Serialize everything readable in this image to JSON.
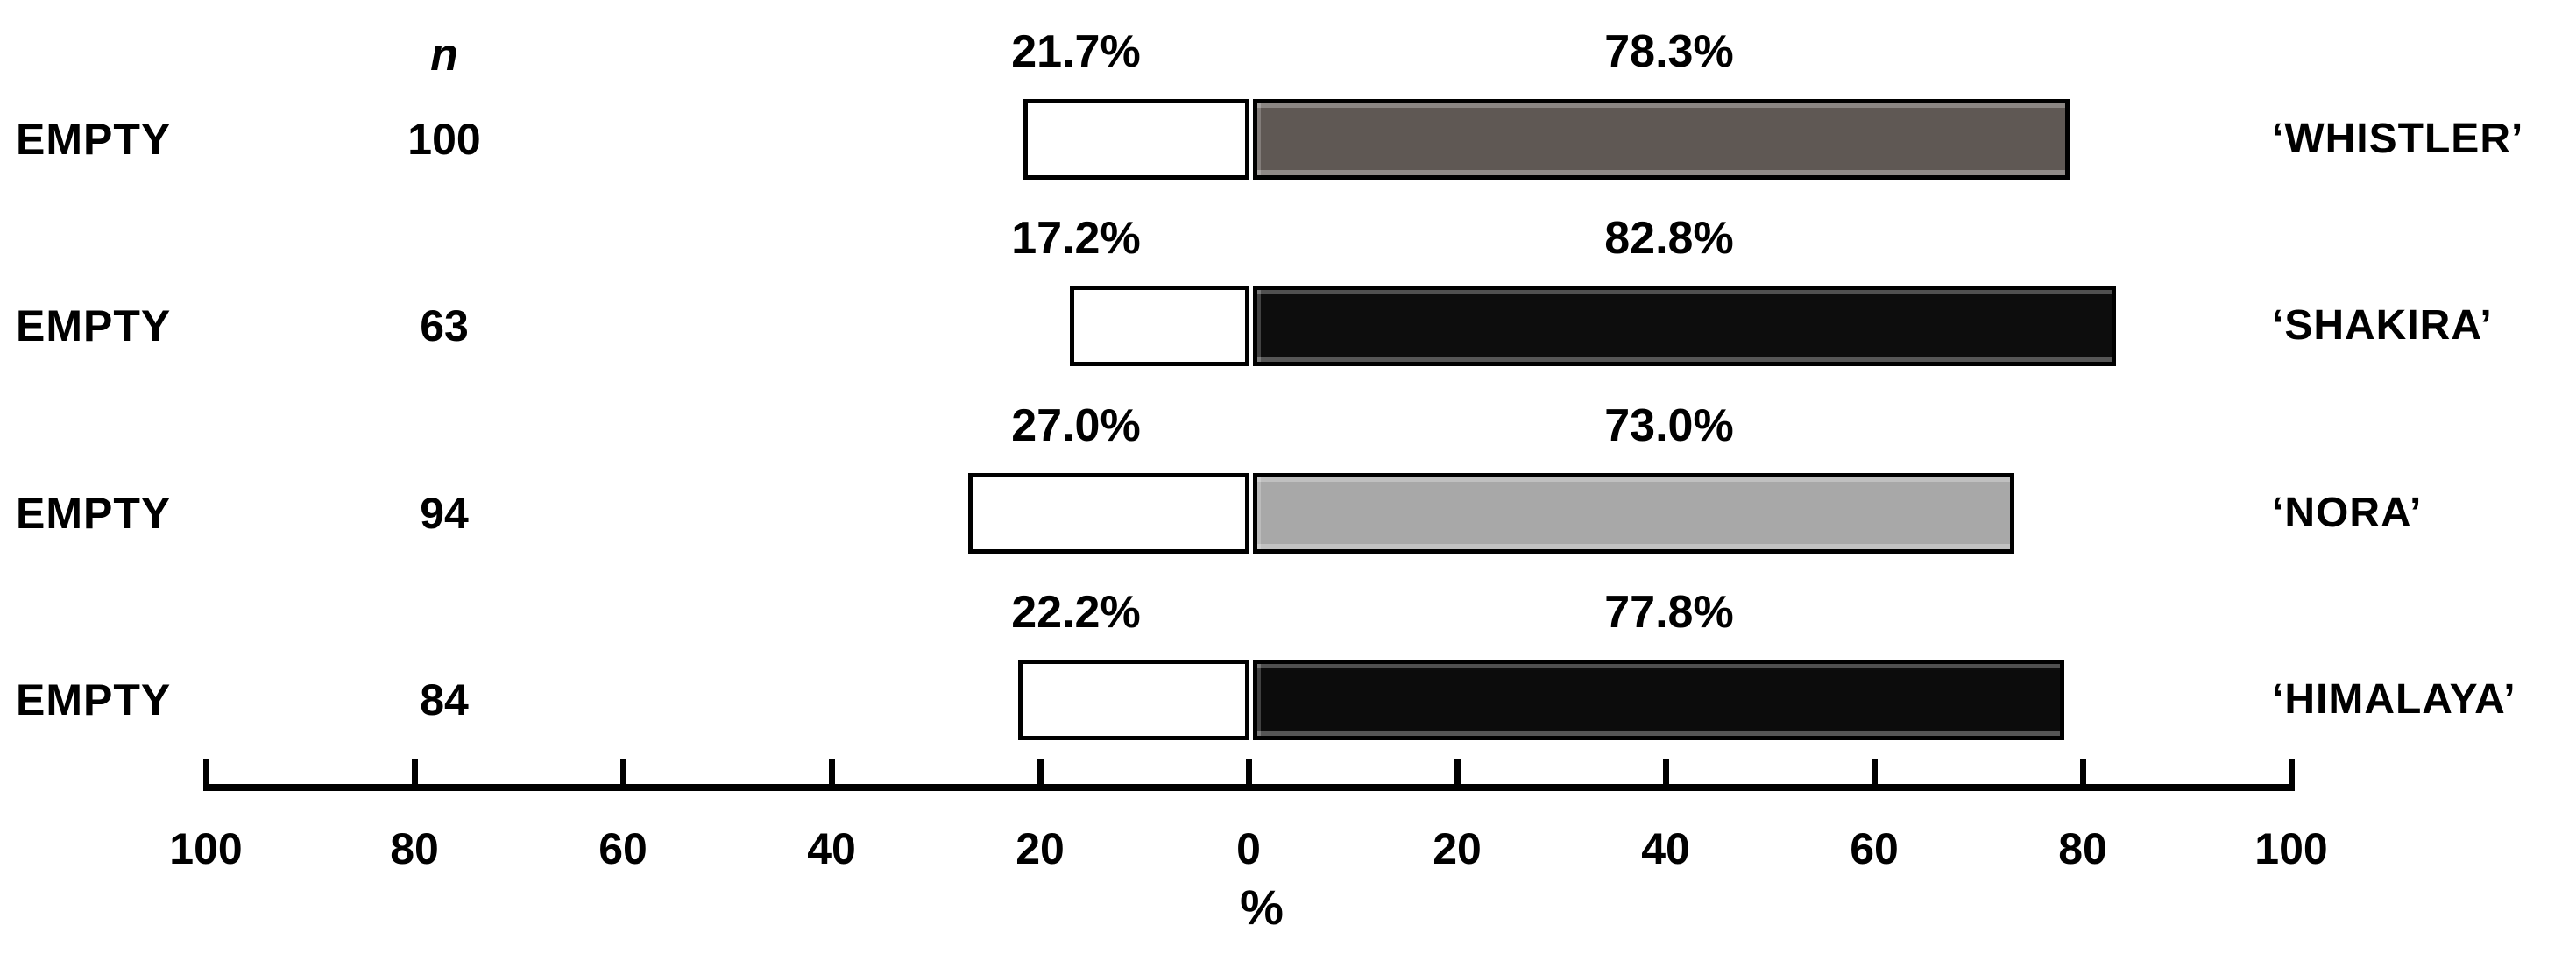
{
  "chart_data": {
    "type": "bar",
    "subtype": "diverging-horizontal-paired-bars",
    "title": "",
    "xlabel": "%",
    "n_column_header": "n",
    "grid": false,
    "axis_tick_labels": [
      "100",
      "80",
      "60",
      "40",
      "20",
      "0",
      "20",
      "40",
      "60",
      "80",
      "100"
    ],
    "axis_range": {
      "left_max": 100,
      "center": 0,
      "right_max": 100
    },
    "colors": {
      "left_bar_fill": "#ffffff",
      "bar_border": "#000000",
      "axis": "#000000"
    },
    "rows": [
      {
        "label": "EMPTY",
        "n": "100",
        "left_value": 21.7,
        "right_value": 78.3,
        "left_pct_label": "21.7%",
        "right_pct_label": "78.3%",
        "name": "‘WHISTLER’",
        "right_bar_color": "#5f5854"
      },
      {
        "label": "EMPTY",
        "n": "63",
        "left_value": 17.2,
        "right_value": 82.8,
        "left_pct_label": "17.2%",
        "right_pct_label": "82.8%",
        "name": "‘SHAKIRA’",
        "right_bar_color": "#0d0d0d"
      },
      {
        "label": "EMPTY",
        "n": "94",
        "left_value": 27.0,
        "right_value": 73.0,
        "left_pct_label": "27.0%",
        "right_pct_label": "73.0%",
        "name": "‘NORA’",
        "right_bar_color": "#a8a8a8"
      },
      {
        "label": "EMPTY",
        "n": "84",
        "left_value": 22.2,
        "right_value": 77.8,
        "left_pct_label": "22.2%",
        "right_pct_label": "77.8%",
        "name": "‘HIMALAYA’",
        "right_bar_color": "#0c0c0c"
      }
    ]
  }
}
